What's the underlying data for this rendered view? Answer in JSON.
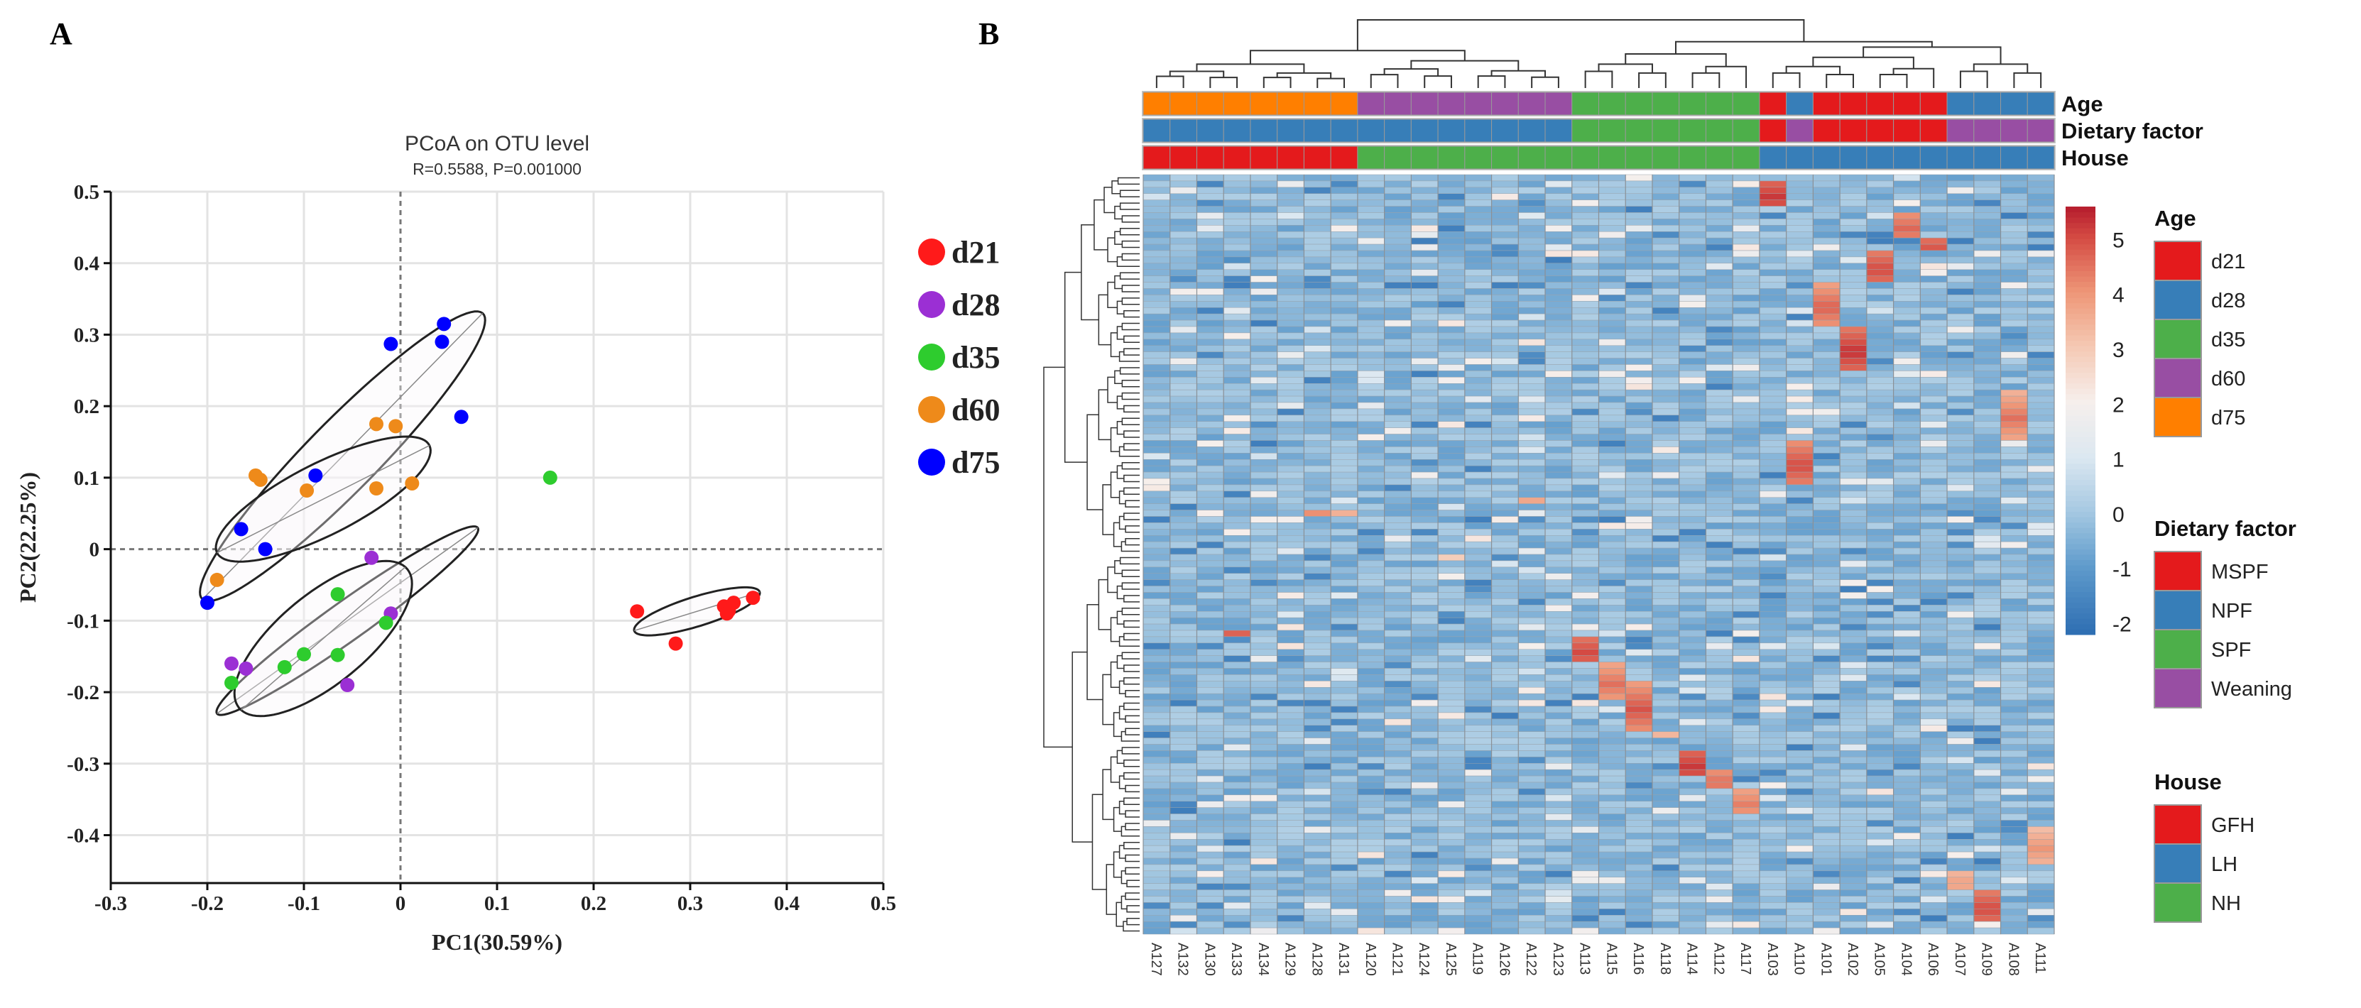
{
  "panel_labels": {
    "a": "A",
    "b": "B"
  },
  "chart_data": [
    {
      "type": "scatter",
      "title": "PCoA on OTU level",
      "subtitle": "R=0.5588, P=0.001000",
      "xlabel": "PC1(30.59%)",
      "ylabel": "PC2(22.25%)",
      "xlim": [
        -0.3,
        0.5
      ],
      "ylim": [
        -0.467,
        0.5
      ],
      "grid": true,
      "legend_position": "right",
      "xticks": [
        {
          "v": -0.3,
          "t": "-0.3"
        },
        {
          "v": -0.2,
          "t": "-0.2"
        },
        {
          "v": -0.1,
          "t": "-0.1"
        },
        {
          "v": 0,
          "t": "0"
        },
        {
          "v": 0.1,
          "t": "0.1"
        },
        {
          "v": 0.2,
          "t": "0.2"
        },
        {
          "v": 0.3,
          "t": "0.3"
        },
        {
          "v": 0.4,
          "t": "0.4"
        },
        {
          "v": 0.5,
          "t": "0.5"
        }
      ],
      "yticks": [
        {
          "v": 0.5,
          "t": "0.5"
        },
        {
          "v": 0.4,
          "t": "0.4"
        },
        {
          "v": 0.3,
          "t": "0.3"
        },
        {
          "v": 0.2,
          "t": "0.2"
        },
        {
          "v": 0.1,
          "t": "0.1"
        },
        {
          "v": 0,
          "t": "0"
        },
        {
          "v": -0.1,
          "t": "-0.1"
        },
        {
          "v": -0.2,
          "t": "-0.2"
        },
        {
          "v": -0.3,
          "t": "-0.3"
        },
        {
          "v": -0.4,
          "t": "-0.4"
        }
      ],
      "series": [
        {
          "name": "d21",
          "color": "#ff1a1a",
          "points": [
            [
              0.245,
              -0.087
            ],
            [
              0.285,
              -0.132
            ],
            [
              0.335,
              -0.08
            ],
            [
              0.34,
              -0.086
            ],
            [
              0.345,
              -0.075
            ],
            [
              0.365,
              -0.068
            ],
            [
              0.338,
              -0.09
            ]
          ]
        },
        {
          "name": "d28",
          "color": "#9b2fd4",
          "points": [
            [
              -0.03,
              -0.012
            ],
            [
              -0.01,
              -0.09
            ],
            [
              -0.175,
              -0.16
            ],
            [
              -0.16,
              -0.167
            ],
            [
              -0.055,
              -0.19
            ]
          ]
        },
        {
          "name": "d35",
          "color": "#2ecc2e",
          "points": [
            [
              0.155,
              0.1
            ],
            [
              -0.065,
              -0.063
            ],
            [
              -0.015,
              -0.103
            ],
            [
              -0.065,
              -0.148
            ],
            [
              -0.1,
              -0.147
            ],
            [
              -0.12,
              -0.165
            ],
            [
              -0.175,
              -0.187
            ]
          ]
        },
        {
          "name": "d60",
          "color": "#ee8a1a",
          "points": [
            [
              -0.025,
              0.175
            ],
            [
              -0.005,
              0.172
            ],
            [
              -0.15,
              0.103
            ],
            [
              -0.145,
              0.097
            ],
            [
              -0.097,
              0.082
            ],
            [
              -0.025,
              0.085
            ],
            [
              0.012,
              0.092
            ],
            [
              -0.19,
              -0.043
            ]
          ]
        },
        {
          "name": "d75",
          "color": "#0000ff",
          "points": [
            [
              0.045,
              0.315
            ],
            [
              0.043,
              0.29
            ],
            [
              -0.01,
              0.287
            ],
            [
              0.063,
              0.185
            ],
            [
              -0.088,
              0.103
            ],
            [
              -0.165,
              0.028
            ],
            [
              -0.14,
              0.0
            ],
            [
              -0.2,
              -0.075
            ]
          ]
        }
      ],
      "ellipses": [
        {
          "group": "d75",
          "center": [
            -0.06,
            0.13
          ],
          "major": [
            0.145,
            0.2
          ],
          "minor": [
            0.028,
            -0.032
          ]
        },
        {
          "group": "d60",
          "center": [
            -0.08,
            0.07
          ],
          "major": [
            0.11,
            0.075
          ],
          "minor": [
            0.016,
            -0.045
          ]
        },
        {
          "group": "d35",
          "center": [
            -0.055,
            -0.1
          ],
          "major": [
            0.135,
            0.13
          ],
          "minor": [
            0.012,
            -0.022
          ]
        },
        {
          "group": "d28",
          "center": [
            -0.08,
            -0.125
          ],
          "major": [
            0.085,
            0.1
          ],
          "minor": [
            0.035,
            -0.042
          ]
        },
        {
          "group": "d21",
          "center": [
            0.307,
            -0.087
          ],
          "major": [
            0.065,
            0.027
          ],
          "minor": [
            0.004,
            -0.02
          ]
        }
      ]
    },
    {
      "type": "heatmap",
      "columns": [
        "A127",
        "A132",
        "A130",
        "A133",
        "A134",
        "A129",
        "A128",
        "A131",
        "A120",
        "A121",
        "A124",
        "A125",
        "A119",
        "A126",
        "A122",
        "A123",
        "A113",
        "A115",
        "A116",
        "A118",
        "A114",
        "A112",
        "A117",
        "A103",
        "A110",
        "A101",
        "A102",
        "A105",
        "A104",
        "A106",
        "A107",
        "A109",
        "A108",
        "A111"
      ],
      "n_rows": 120,
      "annotation_tracks": [
        {
          "name": "Age",
          "values": [
            "d75",
            "d75",
            "d75",
            "d75",
            "d75",
            "d75",
            "d75",
            "d75",
            "d60",
            "d60",
            "d60",
            "d60",
            "d60",
            "d60",
            "d60",
            "d60",
            "d35",
            "d35",
            "d35",
            "d35",
            "d35",
            "d35",
            "d35",
            "d21",
            "d28",
            "d21",
            "d21",
            "d21",
            "d21",
            "d21",
            "d28",
            "d28",
            "d28",
            "d28"
          ]
        },
        {
          "name": "Dietary factor",
          "values": [
            "NPF",
            "NPF",
            "NPF",
            "NPF",
            "NPF",
            "NPF",
            "NPF",
            "NPF",
            "NPF",
            "NPF",
            "NPF",
            "NPF",
            "NPF",
            "NPF",
            "NPF",
            "NPF",
            "SPF",
            "SPF",
            "SPF",
            "SPF",
            "SPF",
            "SPF",
            "SPF",
            "MSPF",
            "Weaning",
            "MSPF",
            "MSPF",
            "MSPF",
            "MSPF",
            "MSPF",
            "Weaning",
            "Weaning",
            "Weaning",
            "Weaning"
          ]
        },
        {
          "name": "House",
          "values": [
            "GFH",
            "GFH",
            "GFH",
            "GFH",
            "GFH",
            "GFH",
            "GFH",
            "GFH",
            "NH",
            "NH",
            "NH",
            "NH",
            "NH",
            "NH",
            "NH",
            "NH",
            "NH",
            "NH",
            "NH",
            "NH",
            "NH",
            "NH",
            "NH",
            "LH",
            "LH",
            "LH",
            "LH",
            "LH",
            "LH",
            "LH",
            "LH",
            "LH",
            "LH",
            "LH"
          ]
        }
      ],
      "legends": [
        {
          "title": "Age",
          "items": [
            {
              "label": "d21",
              "color": "#e41a1c"
            },
            {
              "label": "d28",
              "color": "#377eb8"
            },
            {
              "label": "d35",
              "color": "#4daf4a"
            },
            {
              "label": "d60",
              "color": "#984ea3"
            },
            {
              "label": "d75",
              "color": "#ff7f00"
            }
          ]
        },
        {
          "title": "Dietary factor",
          "items": [
            {
              "label": "MSPF",
              "color": "#e41a1c"
            },
            {
              "label": "NPF",
              "color": "#377eb8"
            },
            {
              "label": "SPF",
              "color": "#4daf4a"
            },
            {
              "label": "Weaning",
              "color": "#984ea3"
            }
          ]
        },
        {
          "title": "House",
          "items": [
            {
              "label": "GFH",
              "color": "#e41a1c"
            },
            {
              "label": "LH",
              "color": "#377eb8"
            },
            {
              "label": "NH",
              "color": "#4daf4a"
            }
          ]
        }
      ],
      "color_scale": {
        "min": -2.2,
        "max": 5.6,
        "ticks": [
          {
            "v": 5,
            "t": "5"
          },
          {
            "v": 4,
            "t": "4"
          },
          {
            "v": 3,
            "t": "3"
          },
          {
            "v": 2,
            "t": "2"
          },
          {
            "v": 1,
            "t": "1"
          },
          {
            "v": 0,
            "t": "0"
          },
          {
            "v": -1,
            "t": "-1"
          },
          {
            "v": -2,
            "t": "-2"
          }
        ],
        "stops": [
          [
            -2.2,
            "#2f6fb3"
          ],
          [
            -1,
            "#5f9bcc"
          ],
          [
            0,
            "#a6c9e2"
          ],
          [
            1,
            "#dce8f1"
          ],
          [
            2,
            "#f6efec"
          ],
          [
            3,
            "#f5c9b4"
          ],
          [
            4,
            "#ee9677"
          ],
          [
            5,
            "#d44a43"
          ],
          [
            5.6,
            "#b2182b"
          ]
        ]
      },
      "hotspots": [
        [
          23,
          1,
          5,
          5.2
        ],
        [
          28,
          6,
          10,
          4.6
        ],
        [
          29,
          10,
          12,
          4.8
        ],
        [
          27,
          12,
          17,
          5.0
        ],
        [
          25,
          17,
          24,
          4.7
        ],
        [
          26,
          24,
          31,
          5.3
        ],
        [
          32,
          34,
          42,
          4.5
        ],
        [
          24,
          42,
          49,
          5.0
        ],
        [
          14,
          51,
          52,
          3.8
        ],
        [
          6,
          53,
          54,
          4.2
        ],
        [
          7,
          53,
          54,
          3.6
        ],
        [
          11,
          60,
          61,
          3.0
        ],
        [
          3,
          72,
          73,
          4.8
        ],
        [
          16,
          73,
          77,
          5.0
        ],
        [
          17,
          77,
          83,
          4.5
        ],
        [
          18,
          80,
          88,
          4.9
        ],
        [
          19,
          88,
          89,
          3.5
        ],
        [
          20,
          91,
          95,
          5.2
        ],
        [
          21,
          94,
          97,
          4.5
        ],
        [
          22,
          97,
          101,
          4.3
        ],
        [
          33,
          103,
          109,
          4.0
        ],
        [
          30,
          110,
          113,
          3.8
        ],
        [
          31,
          113,
          118,
          5.0
        ]
      ]
    }
  ]
}
